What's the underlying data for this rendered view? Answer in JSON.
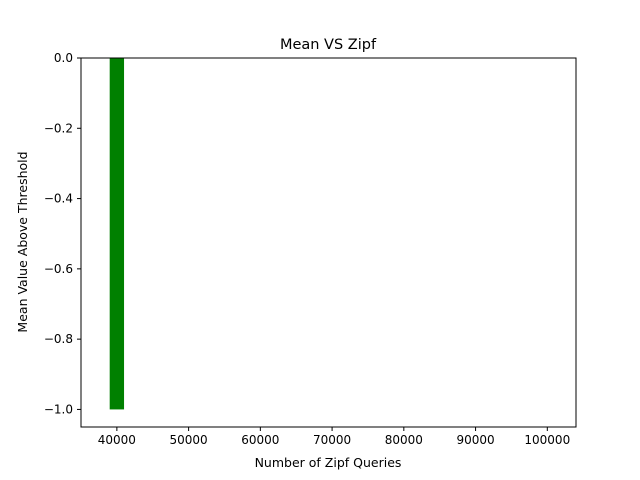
{
  "chart_data": {
    "type": "bar",
    "title": "Mean VS Zipf",
    "xlabel": "Number of Zipf Queries",
    "ylabel": "Mean Value Above Threshold",
    "x": [
      40000
    ],
    "values": [
      -1.0
    ],
    "bar_width": 2000,
    "xlim": [
      35000,
      104000
    ],
    "ylim": [
      -1.05,
      0.0
    ],
    "xticks": [
      40000,
      50000,
      60000,
      70000,
      80000,
      90000,
      100000
    ],
    "xtick_labels": [
      "40000",
      "50000",
      "60000",
      "70000",
      "80000",
      "90000",
      "100000"
    ],
    "yticks": [
      0.0,
      -0.2,
      -0.4,
      -0.6,
      -0.8,
      -1.0
    ],
    "ytick_labels": [
      "0.0",
      "−0.2",
      "−0.4",
      "−0.6",
      "−0.8",
      "−1.0"
    ],
    "bar_color": "#008000",
    "grid": false,
    "legend": "none"
  }
}
